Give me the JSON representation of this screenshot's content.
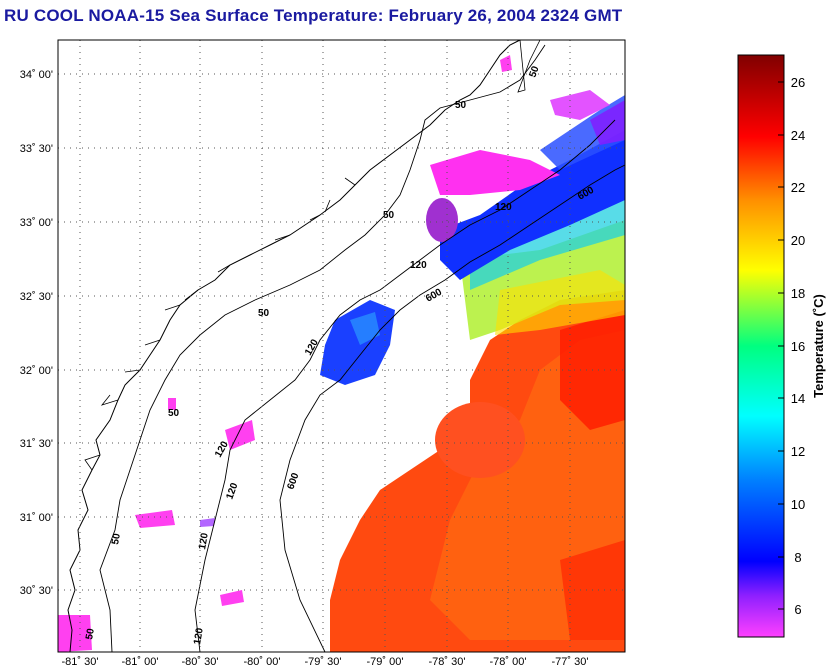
{
  "title": "RU COOL  NOAA-15  Sea Surface Temperature:  February 26, 2004 2324 GMT",
  "map": {
    "lat_ticks": [
      "34˚ 00'",
      "33˚ 30'",
      "33˚ 00'",
      "32˚ 30'",
      "32˚ 00'",
      "31˚ 30'",
      "31˚ 00'",
      "30˚ 30'"
    ],
    "lon_ticks": [
      "-81˚ 30'",
      "-81˚ 00'",
      "-80˚ 30'",
      "-80˚ 00'",
      "-79˚ 30'",
      "-79˚ 00'",
      "-78˚ 30'",
      "-78˚ 00'",
      "-77˚ 30'"
    ],
    "isobath_labels": [
      "50",
      "50",
      "50",
      "50",
      "50",
      "50",
      "120",
      "120",
      "120",
      "120",
      "120",
      "120",
      "600",
      "600",
      "600"
    ],
    "gridlines": "dotted"
  },
  "colorbar": {
    "label": "Temperature (˚C)",
    "ticks": [
      "26",
      "24",
      "22",
      "20",
      "18",
      "16",
      "14",
      "12",
      "10",
      "8",
      "6"
    ],
    "range": [
      5,
      27
    ],
    "colormap": [
      "#ff40ff",
      "#7a00ff",
      "#0000ff",
      "#0080ff",
      "#00ffff",
      "#00ff80",
      "#ffff00",
      "#ff8000",
      "#ff0000",
      "#800000"
    ]
  }
}
